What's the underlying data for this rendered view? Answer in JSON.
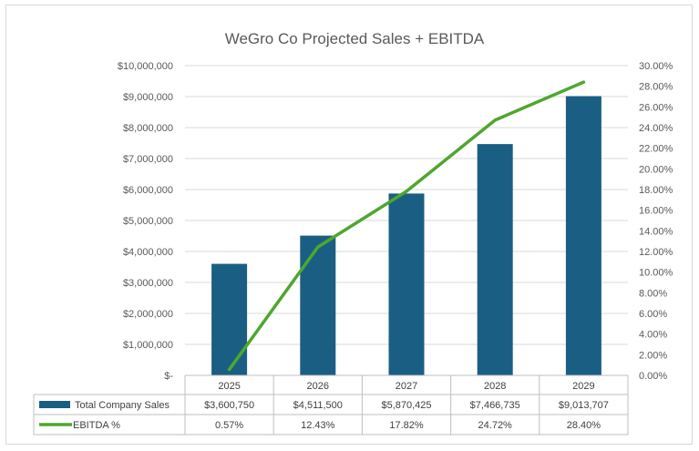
{
  "chart_data": {
    "type": "bar",
    "title": "WeGro Co Projected Sales + EBITDA",
    "categories": [
      "2025",
      "2026",
      "2027",
      "2028",
      "2029"
    ],
    "series": [
      {
        "name": "Total Company Sales",
        "type": "bar",
        "axis": "left",
        "color": "#1b5e83",
        "values": [
          3600750,
          4511500,
          5870425,
          7466735,
          9013707
        ],
        "labels": [
          "$3,600,750",
          "$4,511,500",
          "$5,870,425",
          "$7,466,735",
          "$9,013,707"
        ]
      },
      {
        "name": "EBITDA %",
        "type": "line",
        "axis": "right",
        "color": "#4ea72e",
        "values": [
          0.57,
          12.43,
          17.82,
          24.72,
          28.4
        ],
        "labels": [
          "0.57%",
          "12.43%",
          "17.82%",
          "24.72%",
          "28.40%"
        ]
      }
    ],
    "y_left": {
      "ylim": [
        0,
        10000000
      ],
      "ticks": [
        "$-",
        "$1,000,000",
        "$2,000,000",
        "$3,000,000",
        "$4,000,000",
        "$5,000,000",
        "$6,000,000",
        "$7,000,000",
        "$8,000,000",
        "$9,000,000",
        "$10,000,000"
      ]
    },
    "y_right": {
      "ylim": [
        0,
        30
      ],
      "ticks": [
        "0.00%",
        "2.00%",
        "4.00%",
        "6.00%",
        "8.00%",
        "10.00%",
        "12.00%",
        "14.00%",
        "16.00%",
        "18.00%",
        "20.00%",
        "22.00%",
        "24.00%",
        "26.00%",
        "28.00%",
        "30.00%"
      ]
    },
    "grid": true,
    "legend": "data table below chart"
  }
}
